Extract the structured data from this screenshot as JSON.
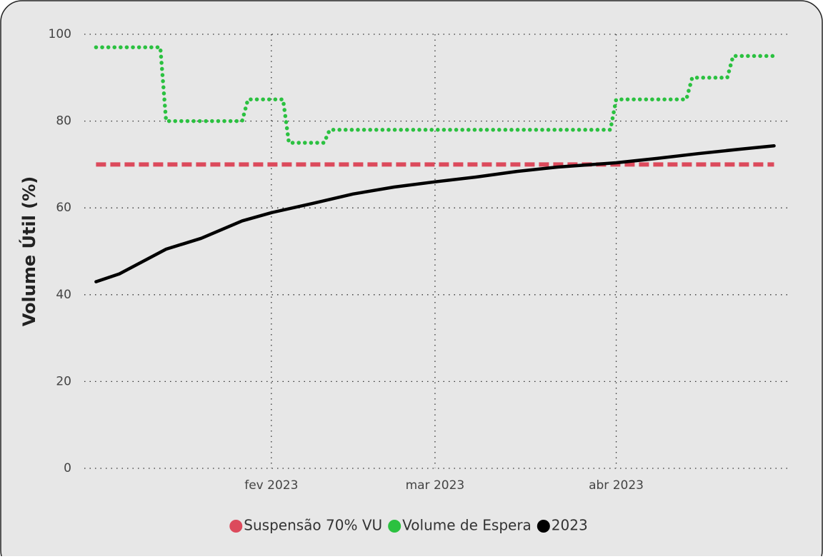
{
  "chart_data": {
    "type": "line",
    "ylabel": "Volume Útil (%)",
    "xlim": [
      "2022-12-31",
      "2023-05-01"
    ],
    "xticks": [
      {
        "value": "2023-02-01",
        "label": "fev 2023"
      },
      {
        "value": "2023-03-01",
        "label": "mar 2023"
      },
      {
        "value": "2023-04-01",
        "label": "abr 2023"
      }
    ],
    "ylim": [
      0,
      100
    ],
    "yticks": [
      0,
      20,
      40,
      60,
      80,
      100
    ],
    "grid": true,
    "legend": "bottom",
    "series": [
      {
        "name": "Suspensão 70% VU",
        "color": "#dc4a5c",
        "style": "dashed",
        "x": [
          "2023-01-02",
          "2023-04-28"
        ],
        "values": [
          70,
          70
        ]
      },
      {
        "name": "Volume de Espera",
        "color": "#2bc140",
        "style": "dotted",
        "x": [
          "2023-01-02",
          "2023-01-13",
          "2023-01-14",
          "2023-01-27",
          "2023-01-28",
          "2023-02-03",
          "2023-02-04",
          "2023-02-10",
          "2023-02-11",
          "2023-03-31",
          "2023-04-01",
          "2023-04-13",
          "2023-04-14",
          "2023-04-20",
          "2023-04-21",
          "2023-04-28"
        ],
        "values": [
          97,
          97,
          80,
          80,
          85,
          85,
          75,
          75,
          78,
          78,
          85,
          85,
          90,
          90,
          95,
          95
        ]
      },
      {
        "name": "2023",
        "color": "#000000",
        "style": "solid",
        "x": [
          "2023-01-02",
          "2023-01-06",
          "2023-01-14",
          "2023-01-20",
          "2023-01-27",
          "2023-02-01",
          "2023-02-08",
          "2023-02-15",
          "2023-02-22",
          "2023-03-01",
          "2023-03-08",
          "2023-03-15",
          "2023-03-22",
          "2023-04-01",
          "2023-04-08",
          "2023-04-15",
          "2023-04-22",
          "2023-04-28"
        ],
        "values": [
          43,
          44.8,
          50.5,
          53,
          57,
          58.9,
          61,
          63.2,
          64.8,
          66,
          67.1,
          68.4,
          69.4,
          70.4,
          71.4,
          72.5,
          73.5,
          74.3
        ]
      }
    ]
  }
}
